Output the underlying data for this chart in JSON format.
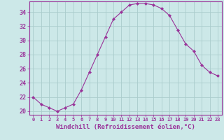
{
  "x": [
    0,
    1,
    2,
    3,
    4,
    5,
    6,
    7,
    8,
    9,
    10,
    11,
    12,
    13,
    14,
    15,
    16,
    17,
    18,
    19,
    20,
    21,
    22,
    23
  ],
  "y": [
    22,
    21,
    20.5,
    20,
    20.5,
    21,
    23,
    25.5,
    28,
    30.5,
    33,
    34,
    35,
    35.2,
    35.2,
    35,
    34.5,
    33.5,
    31.5,
    29.5,
    28.5,
    26.5,
    25.5,
    25
  ],
  "line_color": "#993399",
  "marker": "D",
  "marker_size": 2,
  "bg_color": "#cce8e8",
  "grid_color": "#aacccc",
  "xlabel": "Windchill (Refroidissement éolien,°C)",
  "xlabel_color": "#993399",
  "sep_color": "#993399",
  "ylim": [
    19.5,
    35.5
  ],
  "xlim": [
    -0.5,
    23.5
  ],
  "yticks": [
    20,
    22,
    24,
    26,
    28,
    30,
    32,
    34
  ],
  "xticks": [
    0,
    1,
    2,
    3,
    4,
    5,
    6,
    7,
    8,
    9,
    10,
    11,
    12,
    13,
    14,
    15,
    16,
    17,
    18,
    19,
    20,
    21,
    22,
    23
  ],
  "tick_color": "#993399"
}
